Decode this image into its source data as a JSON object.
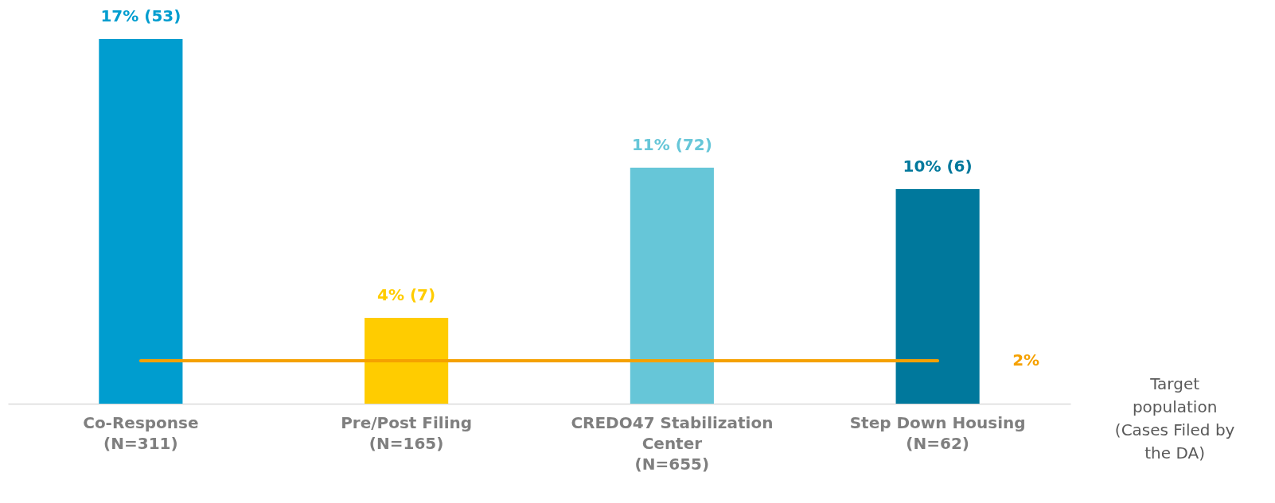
{
  "chart_data": {
    "type": "bar",
    "categories": [
      "Co-Response (N=311)",
      "Pre/Post Filing (N=165)",
      "CREDO47 Stabilization Center (N=655)",
      "Step Down Housing (N=62)"
    ],
    "values": [
      17,
      4,
      11,
      10
    ],
    "colors": [
      "#009dcf",
      "#ffcc00",
      "#66c6d8",
      "#00789c"
    ],
    "value_labels": [
      "17% (53)",
      "4% (7)",
      "11% (72)",
      "10% (6)"
    ],
    "ref_lines": [
      {
        "axis": "y",
        "value": 2,
        "label": "2%",
        "color": "#f5a100"
      }
    ],
    "annotations": [
      "Target population (Cases Filed by the DA)"
    ]
  }
}
